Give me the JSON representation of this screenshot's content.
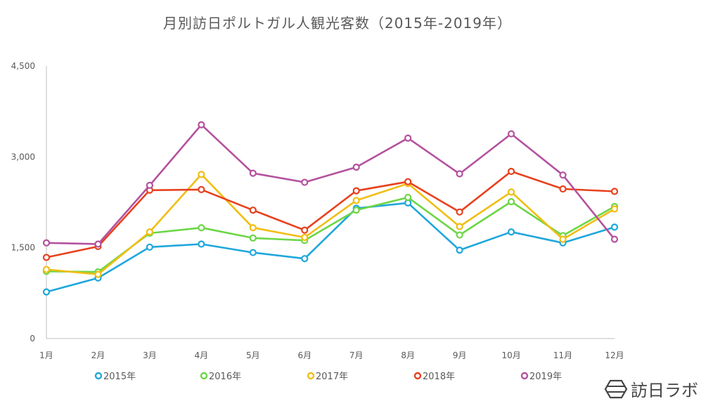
{
  "chart_data": {
    "type": "line",
    "title": "月別訪日ポルトガル人観光客数（2015年-2019年）",
    "xlabel": "",
    "ylabel": "",
    "categories": [
      "1月",
      "2月",
      "3月",
      "4月",
      "5月",
      "6月",
      "7月",
      "8月",
      "9月",
      "10月",
      "11月",
      "12月"
    ],
    "yticks": [
      0,
      1500,
      3000,
      4500
    ],
    "ytick_labels": [
      "0",
      "1,500",
      "3,000",
      "4,500"
    ],
    "ylim": [
      0,
      4500
    ],
    "grid": false,
    "legend_position": "bottom",
    "series": [
      {
        "name": "2015年",
        "color": "#1fa7dc",
        "values": [
          770,
          1000,
          1510,
          1560,
          1420,
          1320,
          2150,
          2240,
          1460,
          1760,
          1580,
          1840
        ]
      },
      {
        "name": "2016年",
        "color": "#6cd646",
        "values": [
          1110,
          1100,
          1740,
          1830,
          1660,
          1620,
          2120,
          2330,
          1710,
          2260,
          1700,
          2180
        ]
      },
      {
        "name": "2017年",
        "color": "#f0be12",
        "values": [
          1140,
          1060,
          1760,
          2710,
          1830,
          1670,
          2280,
          2560,
          1850,
          2420,
          1640,
          2140
        ]
      },
      {
        "name": "2018年",
        "color": "#e8411e",
        "values": [
          1340,
          1520,
          2450,
          2460,
          2120,
          1790,
          2440,
          2590,
          2090,
          2760,
          2470,
          2430
        ]
      },
      {
        "name": "2019年",
        "color": "#b4529e",
        "values": [
          1580,
          1560,
          2530,
          3530,
          2730,
          2580,
          2830,
          3310,
          2720,
          3380,
          2700,
          1640
        ]
      }
    ]
  },
  "logo": {
    "text": "訪日ラボ"
  }
}
